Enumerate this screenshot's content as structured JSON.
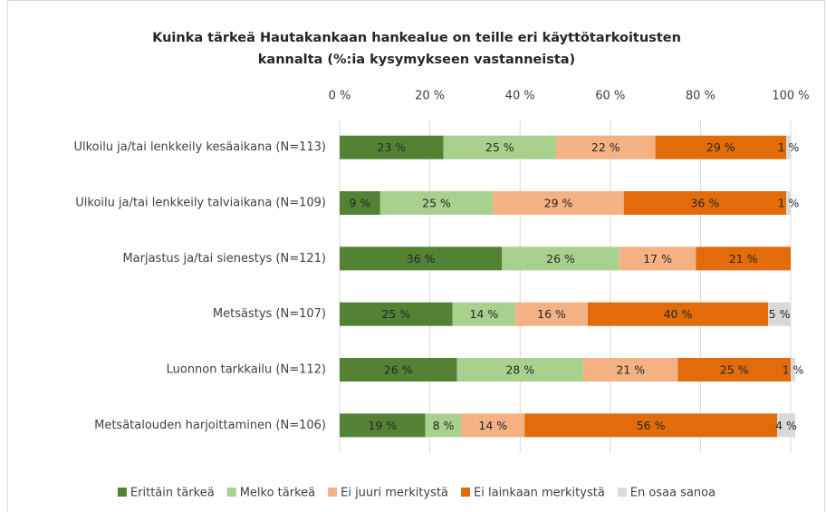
{
  "chart_data": {
    "type": "stacked-bar-horizontal",
    "title": [
      "Kuinka tärkeä Hautakankaan hankealue on teille eri käyttötarkoitusten",
      "kannalta (%:ia kysymykseen vastanneista)"
    ],
    "categories": [
      "Ulkoilu ja/tai lenkkeily kesäaikana (N=113)",
      "Ulkoilu ja/tai lenkkeily talviaikana (N=109)",
      "Marjastus ja/tai sienestys (N=121)",
      "Metsästys (N=107)",
      "Luonnon tarkkailu (N=112)",
      "Metsätalouden harjoittaminen (N=106)"
    ],
    "series": [
      {
        "name": "Erittäin tärkeä",
        "color": "#548235",
        "values": [
          23,
          9,
          36,
          25,
          26,
          19
        ],
        "value_labels": [
          "23 %",
          "9 %",
          "36 %",
          "25 %",
          "26 %",
          "19 %"
        ]
      },
      {
        "name": "Melko tärkeä",
        "color": "#a9d18e",
        "values": [
          25,
          25,
          26,
          14,
          28,
          8
        ],
        "value_labels": [
          "25 %",
          "25 %",
          "26 %",
          "14 %",
          "28 %",
          "8 %"
        ]
      },
      {
        "name": "Ei juuri merkitystä",
        "color": "#f4b183",
        "values": [
          22,
          29,
          17,
          16,
          21,
          14
        ],
        "value_labels": [
          "22 %",
          "29 %",
          "17 %",
          "16 %",
          "21 %",
          "14 %"
        ]
      },
      {
        "name": "Ei lainkaan merkitystä",
        "color": "#e26b0a",
        "values": [
          29,
          36,
          21,
          40,
          25,
          56
        ],
        "value_labels": [
          "29 %",
          "36 %",
          "21 %",
          "40 %",
          "25 %",
          "56 %"
        ]
      },
      {
        "name": "En osaa sanoa",
        "color": "#d9d9d9",
        "values": [
          1,
          1,
          0,
          5,
          1,
          4
        ],
        "value_labels": [
          "1 %",
          "1 %",
          null,
          "5 %",
          "1 %",
          "4 %"
        ]
      }
    ],
    "xlim": [
      0,
      100
    ],
    "xticks": [
      {
        "value": 0,
        "label": "0 %"
      },
      {
        "value": 20,
        "label": "20 %"
      },
      {
        "value": 40,
        "label": "40 %"
      },
      {
        "value": 60,
        "label": "60 %"
      },
      {
        "value": 80,
        "label": "80 %"
      },
      {
        "value": 100,
        "label": "100 %"
      }
    ],
    "grid": true,
    "legend": "bottom"
  }
}
